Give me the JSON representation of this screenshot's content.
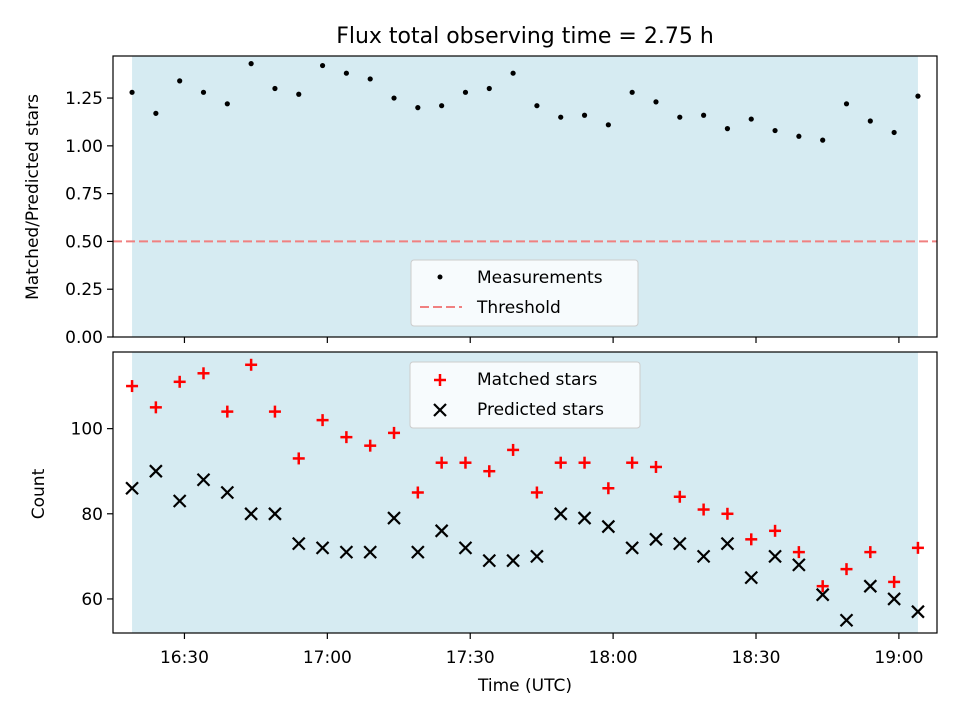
{
  "chart_data": [
    {
      "type": "scatter",
      "panel": "top",
      "title": "Flux total observing time = 2.75 h",
      "xlabel": "",
      "ylabel": "Matched/Predicted stars",
      "ylim": [
        0,
        1.47
      ],
      "yticks": [
        0.0,
        0.25,
        0.5,
        0.75,
        1.0,
        1.25
      ],
      "ytick_labels": [
        "0.00",
        "0.25",
        "0.50",
        "0.75",
        "1.00",
        "1.25"
      ],
      "shaded_span": [
        "16:19",
        "19:04"
      ],
      "shade_color": "#add8e6",
      "threshold": 0.5,
      "threshold_color": "#f08080",
      "legend_position": "lower center",
      "legend": [
        "Measurements",
        "Threshold"
      ],
      "series": [
        {
          "name": "Measurements",
          "marker": "dot",
          "color": "#000000",
          "x": [
            "16:19",
            "16:24",
            "16:29",
            "16:34",
            "16:39",
            "16:44",
            "16:49",
            "16:54",
            "16:59",
            "17:04",
            "17:09",
            "17:14",
            "17:19",
            "17:24",
            "17:29",
            "17:34",
            "17:39",
            "17:44",
            "17:49",
            "17:54",
            "17:59",
            "18:04",
            "18:09",
            "18:14",
            "18:19",
            "18:24",
            "18:29",
            "18:34",
            "18:39",
            "18:44",
            "18:49",
            "18:54",
            "18:59",
            "19:04"
          ],
          "values": [
            1.28,
            1.17,
            1.34,
            1.28,
            1.22,
            1.43,
            1.3,
            1.27,
            1.42,
            1.38,
            1.35,
            1.25,
            1.2,
            1.21,
            1.28,
            1.3,
            1.38,
            1.21,
            1.15,
            1.16,
            1.11,
            1.28,
            1.23,
            1.15,
            1.16,
            1.09,
            1.14,
            1.08,
            1.05,
            1.03,
            1.22,
            1.13,
            1.07,
            1.26
          ]
        }
      ]
    },
    {
      "type": "scatter",
      "panel": "bottom",
      "xlabel": "Time (UTC)",
      "ylabel": "Count",
      "ylim": [
        52,
        118
      ],
      "yticks": [
        60,
        80,
        100
      ],
      "ytick_labels": [
        "60",
        "80",
        "100"
      ],
      "xticks": [
        "16:30",
        "17:00",
        "17:30",
        "18:00",
        "18:30",
        "19:00"
      ],
      "xlim": [
        "16:15",
        "19:08"
      ],
      "shaded_span": [
        "16:19",
        "19:04"
      ],
      "legend_position": "upper center",
      "legend": [
        "Matched stars",
        "Predicted stars"
      ],
      "x": [
        "16:19",
        "16:24",
        "16:29",
        "16:34",
        "16:39",
        "16:44",
        "16:49",
        "16:54",
        "16:59",
        "17:04",
        "17:09",
        "17:14",
        "17:19",
        "17:24",
        "17:29",
        "17:34",
        "17:39",
        "17:44",
        "17:49",
        "17:54",
        "17:59",
        "18:04",
        "18:09",
        "18:14",
        "18:19",
        "18:24",
        "18:29",
        "18:34",
        "18:39",
        "18:44",
        "18:49",
        "18:54",
        "18:59",
        "19:04"
      ],
      "series": [
        {
          "name": "Matched stars",
          "marker": "plus",
          "color": "#ff0000",
          "values": [
            110,
            105,
            111,
            113,
            104,
            115,
            104,
            93,
            102,
            98,
            96,
            99,
            85,
            92,
            92,
            90,
            95,
            85,
            92,
            92,
            86,
            92,
            91,
            84,
            81,
            80,
            74,
            76,
            71,
            63,
            67,
            71,
            64,
            72
          ]
        },
        {
          "name": "Predicted stars",
          "marker": "x",
          "color": "#000000",
          "values": [
            86,
            90,
            83,
            88,
            85,
            80,
            80,
            73,
            72,
            71,
            71,
            79,
            71,
            76,
            72,
            69,
            69,
            70,
            80,
            79,
            77,
            72,
            74,
            73,
            70,
            73,
            65,
            70,
            68,
            61,
            55,
            63,
            60,
            57
          ]
        }
      ]
    }
  ]
}
